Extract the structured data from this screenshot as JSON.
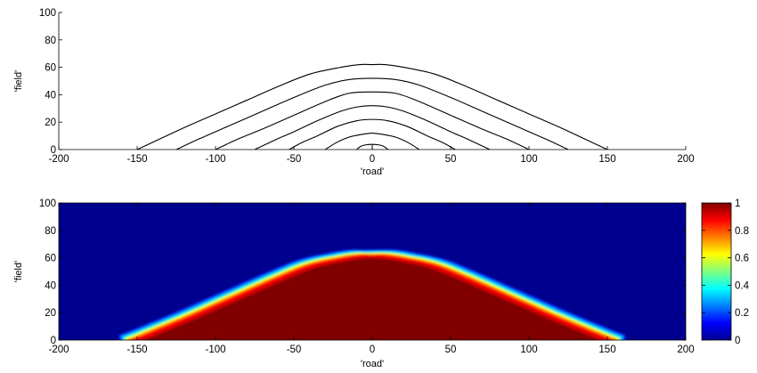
{
  "chart_data": [
    {
      "type": "line",
      "title": "",
      "xlabel": "'road'",
      "ylabel": "'field'",
      "xlim": [
        -200,
        200
      ],
      "ylim": [
        0,
        100
      ],
      "x_ticks": [
        -200,
        -150,
        -100,
        -50,
        0,
        50,
        100,
        150,
        200
      ],
      "y_ticks": [
        0,
        20,
        40,
        60,
        80,
        100
      ],
      "grid": false,
      "series": [
        {
          "contour_level": 1,
          "x": [
            -150,
            -135,
            -120,
            -100,
            -80,
            -60,
            -40,
            -20,
            -8,
            0,
            8,
            20,
            40,
            60,
            80,
            100,
            120,
            135,
            150
          ],
          "y": [
            0,
            8,
            16,
            26,
            36,
            46,
            55,
            60,
            62,
            62,
            62,
            60,
            55,
            46,
            36,
            26,
            16,
            8,
            0
          ]
        },
        {
          "contour_level": 2,
          "x": [
            -125,
            -110,
            -90,
            -70,
            -50,
            -30,
            -15,
            0,
            15,
            30,
            50,
            70,
            90,
            110,
            125
          ],
          "y": [
            0,
            8,
            18,
            28,
            38,
            47,
            51,
            52,
            51,
            47,
            38,
            28,
            18,
            8,
            0
          ]
        },
        {
          "contour_level": 3,
          "x": [
            -100,
            -85,
            -70,
            -50,
            -30,
            -15,
            0,
            15,
            30,
            50,
            70,
            85,
            100
          ],
          "y": [
            0,
            8,
            15,
            25,
            35,
            41,
            42,
            41,
            35,
            25,
            15,
            8,
            0
          ]
        },
        {
          "contour_level": 4,
          "x": [
            -75,
            -62,
            -50,
            -35,
            -20,
            -10,
            0,
            10,
            20,
            35,
            50,
            62,
            75
          ],
          "y": [
            0,
            7,
            13,
            21,
            28,
            31,
            32,
            31,
            28,
            21,
            13,
            7,
            0
          ]
        },
        {
          "contour_level": 5,
          "x": [
            -53,
            -45,
            -35,
            -22,
            -10,
            0,
            10,
            22,
            35,
            45,
            53
          ],
          "y": [
            0,
            5,
            10,
            17,
            21,
            22,
            21,
            17,
            10,
            5,
            0
          ]
        },
        {
          "contour_level": 6,
          "x": [
            -30,
            -23,
            -15,
            -7,
            0,
            7,
            15,
            23,
            30
          ],
          "y": [
            0,
            5,
            9,
            11,
            12,
            11,
            9,
            5,
            0
          ]
        },
        {
          "contour_level": 7,
          "x": [
            -10,
            -7,
            -3,
            0,
            3,
            7,
            10
          ],
          "y": [
            0,
            2.5,
            3.6,
            3.8,
            3.6,
            2.5,
            0
          ]
        }
      ]
    },
    {
      "type": "heatmap",
      "title": "",
      "xlabel": "'road'",
      "ylabel": "'field'",
      "xlim": [
        -200,
        200
      ],
      "ylim": [
        0,
        100
      ],
      "x_ticks": [
        -200,
        -150,
        -100,
        -50,
        0,
        50,
        100,
        150,
        200
      ],
      "y_ticks": [
        0,
        20,
        40,
        60,
        80,
        100
      ],
      "colormap": "jet",
      "value_range": [
        0,
        1
      ],
      "colorbar_ticks": [
        0,
        0.2,
        0.4,
        0.6,
        0.8,
        1
      ],
      "high_region_boundary": {
        "x": [
          -155,
          -150,
          -120,
          -100,
          -80,
          -60,
          -40,
          -20,
          -8,
          0,
          8,
          20,
          40,
          60,
          80,
          100,
          120,
          150,
          155
        ],
        "y": [
          0,
          2,
          16,
          26,
          36,
          46,
          55,
          60,
          62,
          62,
          62,
          60,
          55,
          46,
          36,
          26,
          16,
          2,
          0
        ]
      }
    }
  ]
}
